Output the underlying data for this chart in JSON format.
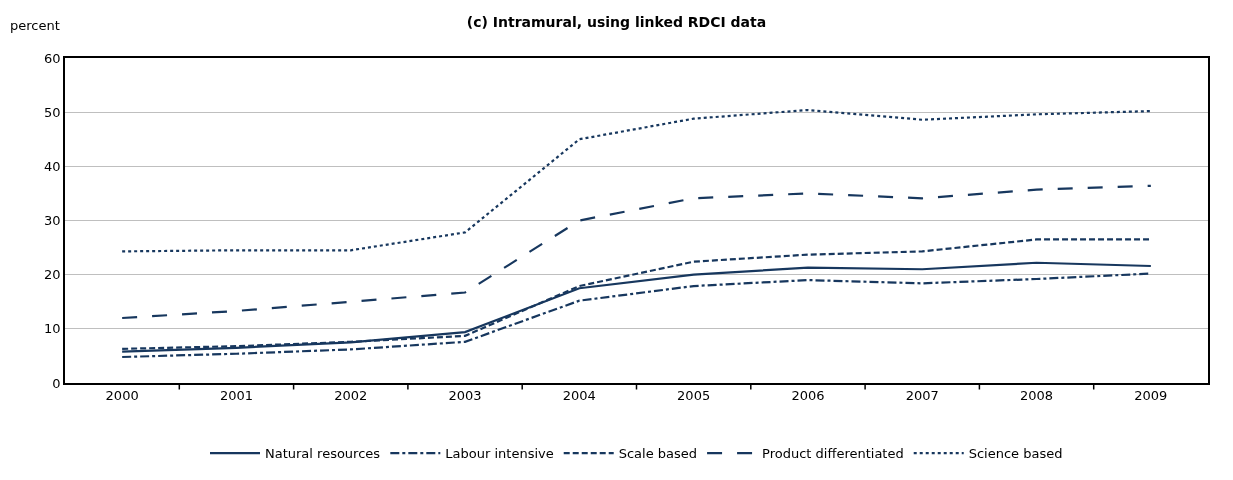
{
  "chart_data": {
    "type": "line",
    "title": "(c) Intramural, using linked RDCI data",
    "ylabel": "percent",
    "categories": [
      "2000",
      "2001",
      "2002",
      "2003",
      "2004",
      "2005",
      "2006",
      "2007",
      "2008",
      "2009"
    ],
    "series": [
      {
        "name": "Natural resources",
        "color": "#17375e",
        "line_style": "solid",
        "values": [
          5.8,
          6.5,
          7.5,
          9.4,
          17.5,
          20.0,
          21.3,
          21.0,
          22.2,
          21.6
        ]
      },
      {
        "name": "Labour intensive",
        "color": "#17375e",
        "line_style": "dashdot",
        "values": [
          4.8,
          5.4,
          6.2,
          7.6,
          15.2,
          17.9,
          19.0,
          18.4,
          19.2,
          20.2
        ]
      },
      {
        "name": "Scale based",
        "color": "#17375e",
        "line_style": "dashed",
        "values": [
          6.3,
          6.8,
          7.6,
          8.7,
          17.9,
          22.4,
          23.7,
          24.3,
          26.5,
          26.5
        ]
      },
      {
        "name": "Product differentiated",
        "color": "#17375e",
        "line_style": "longdash",
        "values": [
          12.0,
          13.3,
          15.0,
          16.7,
          30.0,
          34.1,
          35.0,
          34.1,
          35.7,
          36.4
        ]
      },
      {
        "name": "Science based",
        "color": "#17375e",
        "line_style": "dotted",
        "values": [
          24.3,
          24.5,
          24.5,
          27.8,
          45.0,
          48.8,
          50.4,
          48.6,
          49.6,
          50.2
        ]
      }
    ],
    "ylim": [
      0,
      60
    ],
    "yticks": [
      0,
      10,
      20,
      30,
      40,
      50,
      60
    ],
    "grid": "y",
    "legend": "bottom",
    "marker": "none"
  }
}
